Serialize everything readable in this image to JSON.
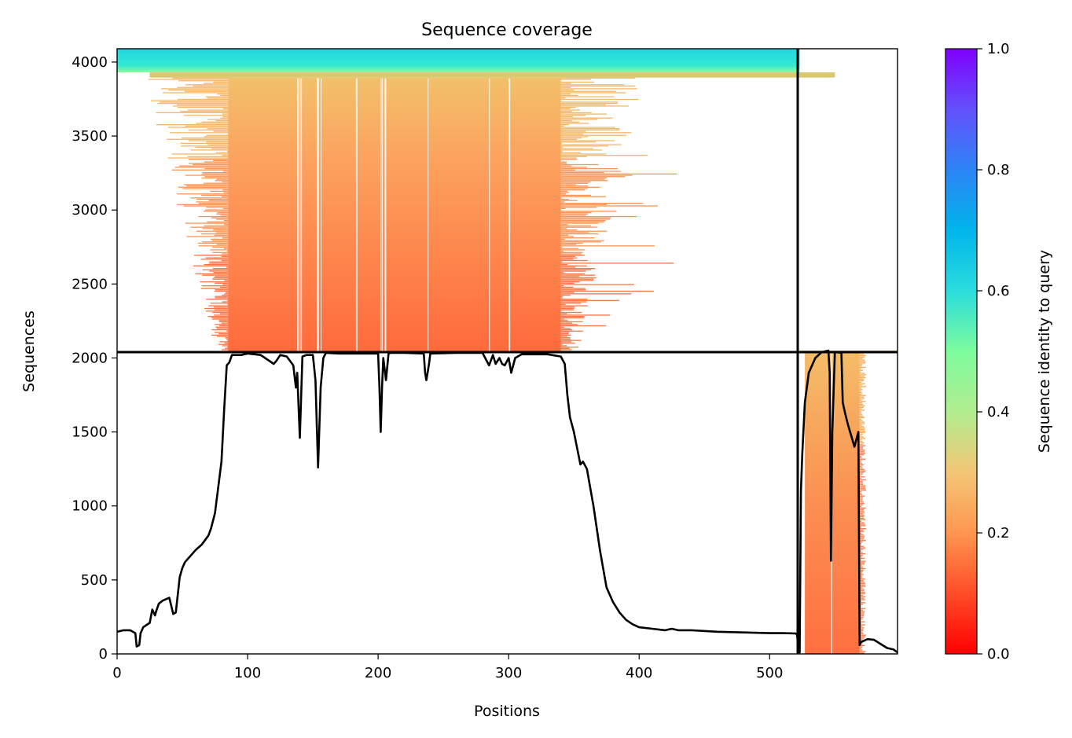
{
  "chart_data": {
    "type": "heatmap",
    "title": "Sequence coverage",
    "xlabel": "Positions",
    "ylabel": "Sequences",
    "xlim": [
      0,
      598
    ],
    "ylim": [
      0,
      4090
    ],
    "xticks": [
      0,
      100,
      200,
      300,
      400,
      500
    ],
    "yticks": [
      0,
      500,
      1000,
      1500,
      2000,
      2500,
      3000,
      3500,
      4000
    ],
    "chain_boundary_x": 523,
    "chain_boundary_y": 2045,
    "colorbar": {
      "label": "Sequence identity to query",
      "range": [
        0,
        1
      ],
      "ticks": [
        0.0,
        0.2,
        0.4,
        0.6,
        0.8,
        1.0
      ],
      "tick_labels": [
        "0.0",
        "0.2",
        "0.4",
        "0.6",
        "0.8",
        "1.0"
      ],
      "colormap": "rainbow_r"
    },
    "msa_blocks": [
      {
        "seq_start": 3930,
        "seq_end": 4090,
        "pos_start": 0,
        "pos_end": 523,
        "identity": 0.62
      },
      {
        "seq_start": 3895,
        "seq_end": 3930,
        "pos_start": 25,
        "pos_end": 550,
        "identity": 0.34
      },
      {
        "seq_start": 2045,
        "seq_end": 3895,
        "pos_start": 85,
        "pos_end": 340,
        "identity_top": 0.27,
        "identity_bottom": 0.15
      },
      {
        "seq_start": 2045,
        "seq_end": 2050,
        "pos_start": 523,
        "pos_end": 598,
        "identity": 0.3
      },
      {
        "seq_start": 0,
        "seq_end": 2040,
        "pos_start": 525,
        "pos_end": 569,
        "identity_top": 0.27,
        "identity_bottom": 0.15
      }
    ],
    "coverage_series": {
      "name": "",
      "x": [
        0,
        5,
        10,
        14,
        15,
        17,
        18,
        20,
        25,
        27,
        29,
        30,
        32,
        35,
        40,
        43,
        45,
        48,
        50,
        52,
        55,
        60,
        65,
        70,
        72,
        75,
        80,
        82,
        84,
        86,
        88,
        90,
        95,
        100,
        110,
        120,
        122,
        125,
        130,
        135,
        137,
        138,
        140,
        142,
        145,
        150,
        152,
        154,
        156,
        158,
        160,
        170,
        180,
        190,
        200,
        201,
        202,
        203,
        204,
        206,
        208,
        210,
        220,
        235,
        236,
        237,
        239,
        240,
        260,
        280,
        285,
        288,
        290,
        293,
        295,
        297,
        300,
        302,
        305,
        310,
        320,
        330,
        340,
        343,
        345,
        347,
        350,
        355,
        357,
        360,
        362,
        365,
        370,
        375,
        380,
        385,
        390,
        395,
        400,
        410,
        420,
        425,
        430,
        440,
        460,
        480,
        500,
        510,
        520,
        521,
        522,
        523,
        524,
        525,
        527,
        530,
        535,
        540,
        545,
        546,
        547,
        548,
        550,
        555,
        556,
        557,
        558,
        560,
        565,
        568,
        569,
        570,
        575,
        580,
        590,
        595,
        598
      ],
      "y": [
        150,
        160,
        160,
        140,
        50,
        60,
        140,
        180,
        210,
        300,
        260,
        290,
        340,
        360,
        380,
        270,
        280,
        520,
        580,
        620,
        650,
        700,
        740,
        800,
        850,
        950,
        1300,
        1650,
        1950,
        1970,
        2020,
        2020,
        2020,
        2030,
        2020,
        1960,
        1980,
        2020,
        2010,
        1950,
        1800,
        1900,
        1460,
        2010,
        2020,
        2020,
        1850,
        1260,
        1800,
        2000,
        2035,
        2030,
        2030,
        2030,
        2030,
        1800,
        1500,
        1800,
        2000,
        1850,
        2030,
        2035,
        2035,
        2030,
        1900,
        1850,
        1960,
        2030,
        2035,
        2035,
        1950,
        2020,
        1960,
        2000,
        1960,
        1950,
        2000,
        1900,
        2000,
        2025,
        2025,
        2025,
        2010,
        1960,
        1750,
        1600,
        1500,
        1280,
        1300,
        1250,
        1150,
        1000,
        700,
        450,
        350,
        280,
        230,
        200,
        180,
        170,
        160,
        170,
        160,
        160,
        150,
        145,
        140,
        140,
        138,
        130,
        50,
        10,
        1100,
        1350,
        1700,
        1900,
        2000,
        2040,
        2050,
        1900,
        630,
        1500,
        2040,
        2035,
        1700,
        1660,
        1620,
        1550,
        1400,
        1500,
        60,
        80,
        100,
        95,
        40,
        30,
        10
      ]
    }
  }
}
